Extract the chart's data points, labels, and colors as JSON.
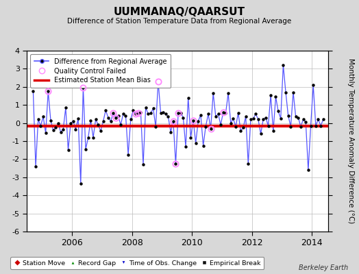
{
  "title": "UUMMANAQ/QAARSUT",
  "subtitle": "Difference of Station Temperature Data from Regional Average",
  "ylabel": "Monthly Temperature Anomaly Difference (°C)",
  "ylim": [
    -6,
    4
  ],
  "yticks": [
    -6,
    -5,
    -4,
    -3,
    -2,
    -1,
    0,
    1,
    2,
    3,
    4
  ],
  "bias_value": -0.15,
  "line_color": "#5555ff",
  "line_color_fill": "#aaaaff",
  "marker_color": "#000000",
  "bias_color": "#dd0000",
  "qc_color": "#ff88ff",
  "bg_color": "#d8d8d8",
  "plot_bg": "#ffffff",
  "grid_color": "#bbbbbb",
  "berkeley_earth_text": "Berkeley Earth",
  "time_series": [
    2004.708,
    1.75,
    2004.792,
    -2.4,
    2004.875,
    0.2,
    2004.958,
    -0.15,
    2005.042,
    0.35,
    2005.125,
    -0.55,
    2005.208,
    1.75,
    2005.292,
    0.15,
    2005.375,
    -0.4,
    2005.458,
    -0.25,
    2005.542,
    0.0,
    2005.625,
    -0.5,
    2005.708,
    -0.35,
    2005.792,
    0.85,
    2005.875,
    -1.5,
    2005.958,
    0.0,
    2006.042,
    0.1,
    2006.125,
    -0.35,
    2006.208,
    0.25,
    2006.292,
    -3.35,
    2006.375,
    1.95,
    2006.458,
    -1.45,
    2006.542,
    -0.8,
    2006.625,
    0.15,
    2006.708,
    -0.8,
    2006.792,
    0.2,
    2006.875,
    -0.1,
    2006.958,
    -0.45,
    2007.042,
    0.1,
    2007.125,
    0.7,
    2007.208,
    0.3,
    2007.292,
    0.1,
    2007.375,
    0.55,
    2007.458,
    0.3,
    2007.542,
    0.4,
    2007.625,
    -0.1,
    2007.708,
    0.5,
    2007.792,
    0.4,
    2007.875,
    -1.75,
    2007.958,
    0.2,
    2008.042,
    0.7,
    2008.125,
    0.5,
    2008.208,
    0.55,
    2008.292,
    0.6,
    2008.375,
    -2.3,
    2008.458,
    0.85,
    2008.542,
    0.5,
    2008.625,
    0.55,
    2008.708,
    0.8,
    2008.792,
    -0.2,
    2008.875,
    2.3,
    2008.958,
    0.55,
    2009.042,
    0.6,
    2009.125,
    0.5,
    2009.208,
    0.35,
    2009.292,
    -0.5,
    2009.375,
    0.1,
    2009.458,
    -2.25,
    2009.542,
    0.55,
    2009.625,
    0.55,
    2009.708,
    0.3,
    2009.792,
    -1.3,
    2009.875,
    1.4,
    2009.958,
    -0.8,
    2010.042,
    0.15,
    2010.125,
    -1.1,
    2010.208,
    0.1,
    2010.292,
    0.45,
    2010.375,
    -1.25,
    2010.458,
    -0.2,
    2010.542,
    0.5,
    2010.625,
    -0.3,
    2010.708,
    1.65,
    2010.792,
    0.35,
    2010.875,
    0.5,
    2010.958,
    -0.1,
    2011.042,
    0.6,
    2011.125,
    0.55,
    2011.208,
    1.65,
    2011.292,
    0.0,
    2011.375,
    0.25,
    2011.458,
    -0.2,
    2011.542,
    0.55,
    2011.625,
    -0.45,
    2011.708,
    -0.25,
    2011.792,
    0.35,
    2011.875,
    -2.25,
    2011.958,
    0.2,
    2012.042,
    0.25,
    2012.125,
    0.5,
    2012.208,
    0.2,
    2012.292,
    -0.6,
    2012.375,
    0.2,
    2012.458,
    0.3,
    2012.542,
    -0.15,
    2012.625,
    1.55,
    2012.708,
    -0.45,
    2012.792,
    1.45,
    2012.875,
    0.65,
    2012.958,
    0.25,
    2013.042,
    3.2,
    2013.125,
    1.7,
    2013.208,
    0.4,
    2013.292,
    -0.2,
    2013.375,
    1.7,
    2013.458,
    0.35,
    2013.542,
    0.3,
    2013.625,
    -0.2,
    2013.708,
    0.2,
    2013.792,
    0.05,
    2013.875,
    -2.6,
    2013.958,
    -0.15,
    2014.042,
    2.1,
    2014.125,
    -0.15,
    2014.208,
    0.2,
    2014.292,
    -0.15,
    2014.375,
    0.2
  ],
  "qc_points": [
    2005.208,
    1.75,
    2006.375,
    1.95,
    2007.375,
    0.55,
    2007.458,
    0.3,
    2008.125,
    0.5,
    2008.208,
    0.55,
    2008.875,
    2.3,
    2009.375,
    0.1,
    2009.458,
    -2.25,
    2009.542,
    0.55,
    2010.042,
    0.15,
    2010.625,
    -0.3,
    2011.042,
    0.6
  ]
}
